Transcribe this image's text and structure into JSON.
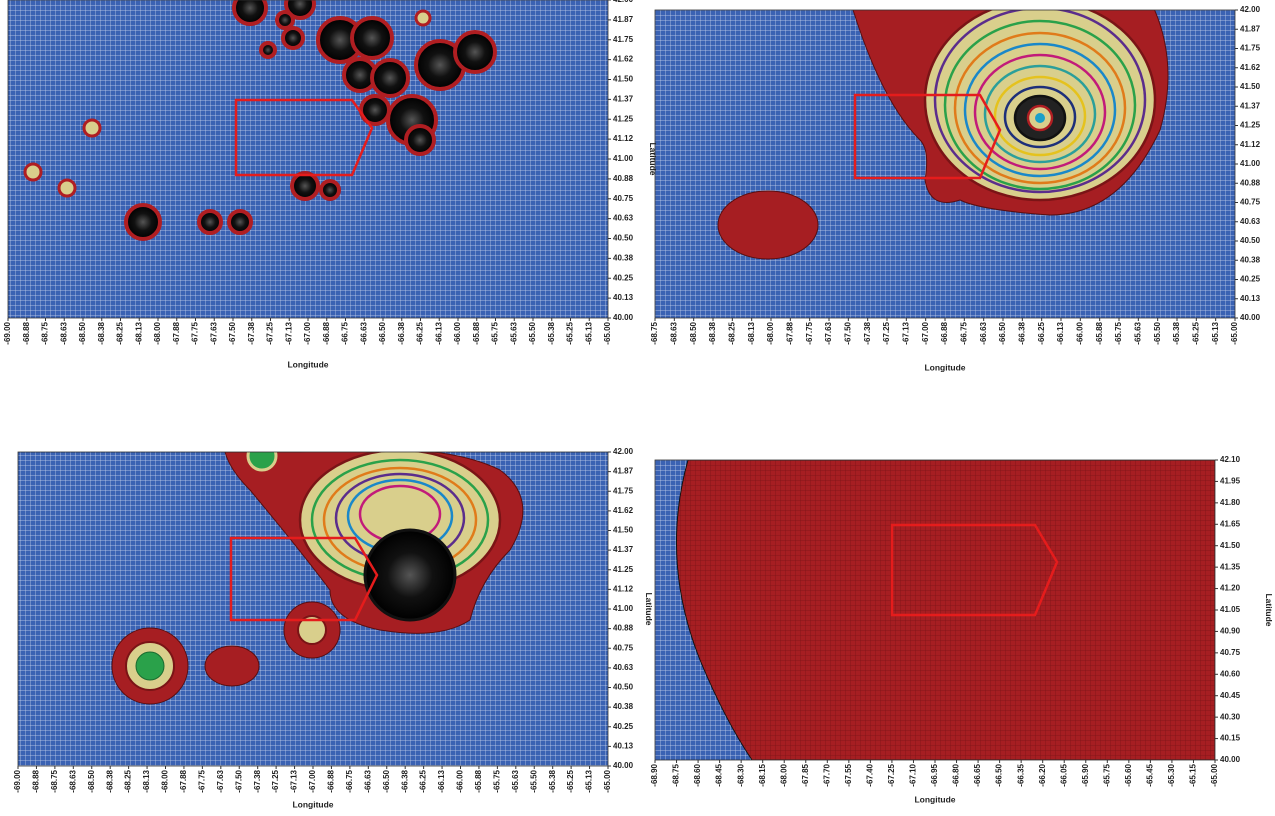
{
  "panels": [
    {
      "x_label": "Longitude",
      "y_label": "Latitude",
      "x_ticks": [
        "-69.00",
        "-68.88",
        "-68.75",
        "-68.63",
        "-68.50",
        "-68.38",
        "-68.25",
        "-68.13",
        "-68.00",
        "-67.88",
        "-67.75",
        "-67.63",
        "-67.50",
        "-67.38",
        "-67.25",
        "-67.13",
        "-67.00",
        "-66.88",
        "-66.75",
        "-66.63",
        "-66.50",
        "-66.38",
        "-66.25",
        "-66.13",
        "-66.00",
        "-65.88",
        "-65.75",
        "-65.63",
        "-65.50",
        "-65.38",
        "-65.25",
        "-65.13",
        "-65.00"
      ],
      "y_ticks": [
        "42.00",
        "41.87",
        "41.75",
        "41.62",
        "41.50",
        "41.37",
        "41.25",
        "41.12",
        "41.00",
        "40.88",
        "40.75",
        "40.63",
        "40.50",
        "40.38",
        "40.25",
        "40.13",
        "40.00"
      ]
    },
    {
      "x_label": "Longitude",
      "x_ticks": [
        "-68.75",
        "-68.63",
        "-68.50",
        "-68.38",
        "-68.25",
        "-68.13",
        "-68.00",
        "-67.88",
        "-67.75",
        "-67.63",
        "-67.50",
        "-67.38",
        "-67.25",
        "-67.13",
        "-67.00",
        "-66.88",
        "-66.75",
        "-66.63",
        "-66.50",
        "-66.38",
        "-66.25",
        "-66.13",
        "-66.00",
        "-65.88",
        "-65.75",
        "-65.63",
        "-65.50",
        "-65.38",
        "-65.25",
        "-65.13",
        "-65.00"
      ],
      "y_ticks": [
        "42.00",
        "41.87",
        "41.75",
        "41.62",
        "41.50",
        "41.37",
        "41.25",
        "41.12",
        "41.00",
        "40.88",
        "40.75",
        "40.63",
        "40.50",
        "40.38",
        "40.25",
        "40.13",
        "40.00"
      ]
    },
    {
      "x_label": "Longitude",
      "y_label": "Latitude",
      "x_ticks": [
        "-69.00",
        "-68.88",
        "-68.75",
        "-68.63",
        "-68.50",
        "-68.38",
        "-68.25",
        "-68.13",
        "-68.00",
        "-67.88",
        "-67.75",
        "-67.63",
        "-67.50",
        "-67.38",
        "-67.25",
        "-67.13",
        "-67.00",
        "-66.88",
        "-66.75",
        "-66.63",
        "-66.50",
        "-66.38",
        "-66.25",
        "-66.13",
        "-66.00",
        "-65.88",
        "-65.75",
        "-65.63",
        "-65.50",
        "-65.38",
        "-65.25",
        "-65.13",
        "-65.00"
      ],
      "y_ticks": [
        "42.00",
        "41.87",
        "41.75",
        "41.62",
        "41.50",
        "41.37",
        "41.25",
        "41.12",
        "41.00",
        "40.88",
        "40.75",
        "40.63",
        "40.50",
        "40.38",
        "40.25",
        "40.13",
        "40.00"
      ]
    },
    {
      "x_label": "Longitude",
      "y_label": "Latitude",
      "x_ticks": [
        "-68.90",
        "-68.75",
        "-68.60",
        "-68.45",
        "-68.30",
        "-68.15",
        "-68.00",
        "-67.85",
        "-67.70",
        "-67.55",
        "-67.40",
        "-67.25",
        "-67.10",
        "-66.95",
        "-66.80",
        "-66.65",
        "-66.50",
        "-66.35",
        "-66.20",
        "-66.05",
        "-65.90",
        "-65.75",
        "-65.60",
        "-65.45",
        "-65.30",
        "-65.15",
        "-65.00"
      ],
      "y_ticks": [
        "42.10",
        "41.95",
        "41.80",
        "41.65",
        "41.50",
        "41.35",
        "41.20",
        "41.05",
        "40.90",
        "40.75",
        "40.60",
        "40.45",
        "40.30",
        "40.15",
        "40.00"
      ]
    }
  ]
}
